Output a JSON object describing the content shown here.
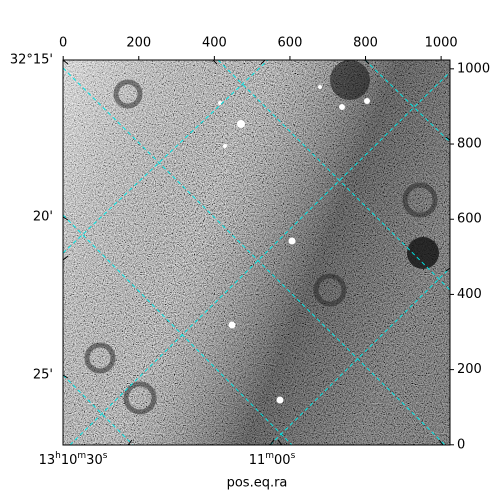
{
  "chart_data": {
    "type": "image",
    "xlabel": "pos.eq.ra",
    "xlim": [
      -0.5,
      1023.5
    ],
    "xticks": [
      0,
      200,
      400,
      600,
      800,
      1000
    ],
    "ylim": [
      -0.5,
      1023.5
    ],
    "yticks": [
      0,
      200,
      400,
      600,
      800,
      1000
    ],
    "dec_labels": [
      "32°15'",
      "20'",
      "25'"
    ],
    "ra_labels": [
      "13h10m30s",
      "11m00s"
    ],
    "grid_color": "#00e5e5"
  }
}
